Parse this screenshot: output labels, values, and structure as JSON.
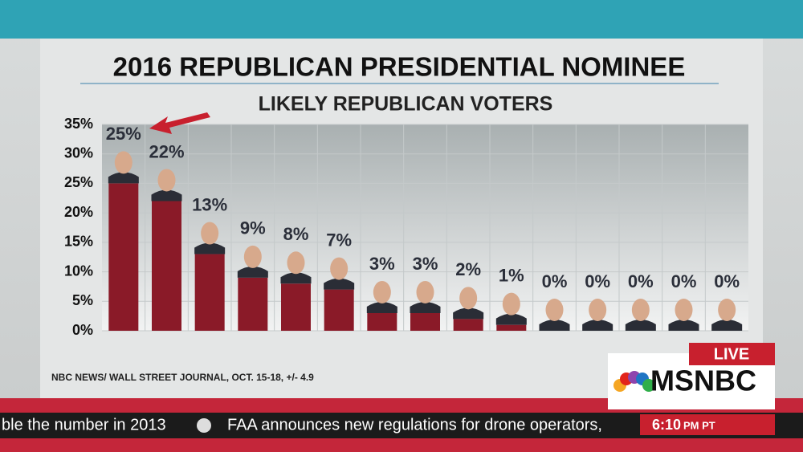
{
  "chart_data": {
    "type": "bar",
    "title": "2016 REPUBLICAN PRESIDENTIAL NOMINEE",
    "subtitle": "LIKELY REPUBLICAN VOTERS",
    "source": "NBC NEWS/ WALL STREET JOURNAL, OCT. 15-18, +/- 4.9",
    "categories": [
      null,
      null,
      null,
      null,
      null,
      null,
      null,
      null,
      null,
      null,
      null,
      null,
      null,
      null,
      null
    ],
    "values": [
      25,
      22,
      13,
      9,
      8,
      7,
      3,
      3,
      2,
      1,
      0,
      0,
      0,
      0,
      0
    ],
    "value_labels": [
      "25%",
      "22%",
      "13%",
      "9%",
      "8%",
      "7%",
      "3%",
      "3%",
      "2%",
      "1%",
      "0%",
      "0%",
      "0%",
      "0%",
      "0%"
    ],
    "color": "#8a1a28",
    "ylim": [
      0,
      35
    ],
    "yticks": [
      {
        "value": 0,
        "label": "0%"
      },
      {
        "value": 5,
        "label": "5%"
      },
      {
        "value": 10,
        "label": "10%"
      },
      {
        "value": 15,
        "label": "15%"
      },
      {
        "value": 20,
        "label": "20%"
      },
      {
        "value": 25,
        "label": "25%"
      },
      {
        "value": 30,
        "label": "30%"
      },
      {
        "value": 35,
        "label": "35%"
      }
    ],
    "grid": true
  },
  "overlay": {
    "live": "LIVE",
    "network": "MSNBC",
    "ticker": [
      "ble the number in 2013",
      "FAA announces new regulations for drone operators,"
    ],
    "time": "6:10",
    "zone": "PM PT"
  }
}
